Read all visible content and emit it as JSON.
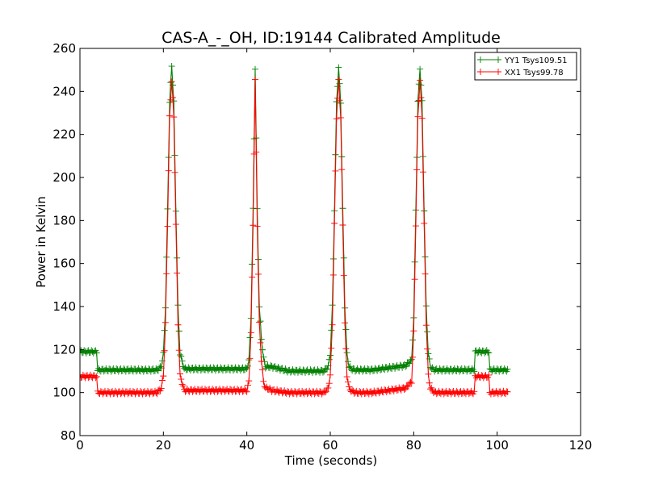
{
  "chart_data": {
    "type": "line",
    "title": "CAS-A_-_OH, ID:19144 Calibrated Amplitude",
    "xlabel": "Time (seconds)",
    "ylabel": "Power in Kelvin",
    "xlim": [
      0,
      120
    ],
    "ylim": [
      80,
      260
    ],
    "xticks": [
      0,
      20,
      40,
      60,
      80,
      100,
      120
    ],
    "yticks": [
      80,
      100,
      120,
      140,
      160,
      180,
      200,
      220,
      240,
      260
    ],
    "grid": false,
    "legend": "top-right",
    "marker": "plus",
    "series": [
      {
        "name": "YY1 Tsys109.51",
        "color": "#008000",
        "peak": 252,
        "x": [
          0,
          4,
          4.2,
          18.5,
          19.5,
          20,
          20.5,
          21,
          21.5,
          22,
          22.5,
          23,
          23.5,
          24,
          25,
          40,
          40.5,
          41,
          41.5,
          42,
          42.5,
          43,
          43.5,
          44,
          44.5,
          45,
          46,
          50,
          58.5,
          59.5,
          60,
          60.5,
          61,
          61.5,
          62,
          62.5,
          63,
          63.5,
          64,
          64.5,
          65,
          66,
          70,
          78,
          79.5,
          80,
          80.5,
          81,
          81.5,
          82,
          82.5,
          83,
          83.5,
          84,
          84.5,
          85,
          86,
          94.5,
          94.7,
          98,
          98.2,
          102.5
        ],
        "y": [
          119,
          119,
          110.5,
          110.5,
          112,
          118,
          140,
          185,
          235,
          252,
          235,
          185,
          140,
          118,
          111,
          111,
          115,
          135,
          185,
          251,
          185,
          140,
          125,
          116,
          112,
          112,
          112,
          110,
          110,
          112,
          118,
          140,
          185,
          235,
          251,
          235,
          185,
          140,
          118,
          112,
          111,
          110.5,
          110.5,
          112.5,
          115,
          135,
          185,
          235,
          251,
          235,
          185,
          140,
          118,
          112,
          111,
          110.5,
          110.5,
          110.5,
          119,
          119,
          110.5,
          110.5
        ]
      },
      {
        "name": "XX1 Tsys99.78",
        "color": "#ff0000",
        "peak": 245,
        "x": [
          0,
          4,
          4.2,
          18.5,
          19.5,
          20,
          20.5,
          21,
          21.5,
          22,
          22.5,
          23,
          23.5,
          24,
          25,
          40,
          40.5,
          41,
          41.5,
          42,
          42.5,
          43,
          43.5,
          44,
          44.5,
          45,
          46,
          50,
          58.5,
          59.5,
          60,
          60.5,
          61,
          61.5,
          62,
          62.5,
          63,
          63.5,
          64,
          64.5,
          65,
          66,
          70,
          78,
          79.5,
          80,
          80.5,
          81,
          81.5,
          82,
          82.5,
          83,
          83.5,
          84,
          84.5,
          85,
          86,
          94.5,
          94.7,
          98,
          98.2,
          102.5
        ],
        "y": [
          107.5,
          107.5,
          100,
          100,
          102,
          108,
          132,
          178,
          228,
          245,
          228,
          178,
          132,
          108,
          101,
          101,
          105,
          128,
          178,
          245,
          178,
          132,
          115,
          105,
          102,
          102,
          101,
          100,
          100,
          102,
          108,
          132,
          178,
          228,
          245,
          228,
          178,
          132,
          108,
          102,
          101,
          100,
          100,
          102,
          105,
          128,
          178,
          228,
          245,
          228,
          178,
          132,
          108,
          102,
          101,
          100,
          100,
          100,
          107.5,
          107.5,
          100,
          100
        ]
      }
    ]
  }
}
